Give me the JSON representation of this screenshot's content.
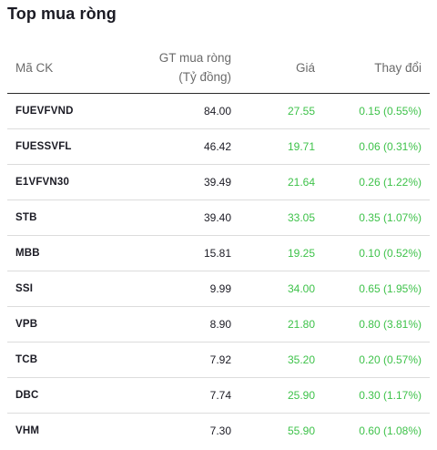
{
  "widget": {
    "title": "Top mua ròng",
    "headers": {
      "symbol": "Mã CK",
      "value_line1": "GT mua ròng",
      "value_line2": "(Tỷ đồng)",
      "price": "Giá",
      "change": "Thay đổi"
    },
    "accent_up_color": "#3ec24a",
    "rows": [
      {
        "symbol": "FUEVFVND",
        "value": "84.00",
        "price": "27.55",
        "change": "0.15 (0.55%)"
      },
      {
        "symbol": "FUESSVFL",
        "value": "46.42",
        "price": "19.71",
        "change": "0.06 (0.31%)"
      },
      {
        "symbol": "E1VFVN30",
        "value": "39.49",
        "price": "21.64",
        "change": "0.26 (1.22%)"
      },
      {
        "symbol": "STB",
        "value": "39.40",
        "price": "33.05",
        "change": "0.35 (1.07%)"
      },
      {
        "symbol": "MBB",
        "value": "15.81",
        "price": "19.25",
        "change": "0.10 (0.52%)"
      },
      {
        "symbol": "SSI",
        "value": "9.99",
        "price": "34.00",
        "change": "0.65 (1.95%)"
      },
      {
        "symbol": "VPB",
        "value": "8.90",
        "price": "21.80",
        "change": "0.80 (3.81%)"
      },
      {
        "symbol": "TCB",
        "value": "7.92",
        "price": "35.20",
        "change": "0.20 (0.57%)"
      },
      {
        "symbol": "DBC",
        "value": "7.74",
        "price": "25.90",
        "change": "0.30 (1.17%)"
      },
      {
        "symbol": "VHM",
        "value": "7.30",
        "price": "55.90",
        "change": "0.60 (1.08%)"
      }
    ]
  }
}
